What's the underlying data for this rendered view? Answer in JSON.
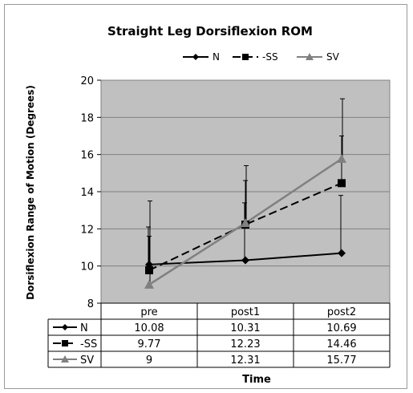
{
  "chart_data": {
    "type": "line",
    "title": "Straight Leg Dorsiflexion ROM",
    "xlabel": "Time",
    "ylabel": "Dorsiflexion Range of Motion (Degrees)",
    "categories": [
      "pre",
      "post1",
      "post2"
    ],
    "ylim": [
      8,
      20
    ],
    "yticks": [
      8,
      10,
      12,
      14,
      16,
      18,
      20
    ],
    "grid": true,
    "legend": "top-right",
    "series": [
      {
        "name": "N",
        "values": [
          10.08,
          10.31,
          10.69
        ],
        "labels": [
          "10.08",
          "10.31",
          "10.69"
        ],
        "error_upper": [
          12.1,
          13.4,
          13.8
        ],
        "marker": "diamond",
        "dash": "solid",
        "color": "#000000"
      },
      {
        "name": "SS",
        "values": [
          9.77,
          12.23,
          14.46
        ],
        "labels": [
          "9.77",
          "12.23",
          "14.46"
        ],
        "error_upper": [
          11.6,
          14.6,
          17.0
        ],
        "marker": "square",
        "dash": "dashed",
        "color": "#000000"
      },
      {
        "name": "SV",
        "values": [
          9,
          12.31,
          15.77
        ],
        "labels": [
          "9",
          "12.31",
          "15.77"
        ],
        "error_upper": [
          13.5,
          15.4,
          19.0
        ],
        "marker": "triangle",
        "dash": "solid",
        "color": "#808080"
      }
    ]
  },
  "colors": {
    "plot_background": "#c0c0c0",
    "gridline": "#808080"
  }
}
